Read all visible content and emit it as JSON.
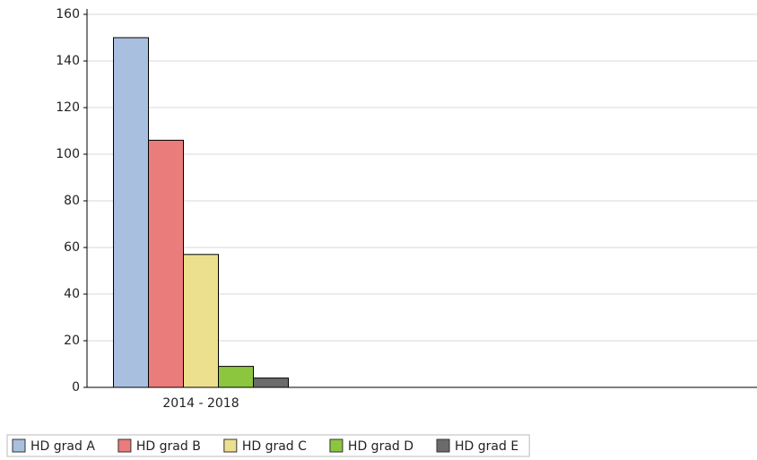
{
  "chart_data": {
    "type": "bar",
    "categories": [
      "2014 - 2018"
    ],
    "series": [
      {
        "name": "HD grad A",
        "color": "#a9bfe0",
        "values": [
          150
        ]
      },
      {
        "name": "HD grad B",
        "color": "#ea7c7b",
        "values": [
          106
        ]
      },
      {
        "name": "HD grad C",
        "color": "#ece08e",
        "values": [
          57
        ]
      },
      {
        "name": "HD grad D",
        "color": "#8cc63f",
        "values": [
          9
        ]
      },
      {
        "name": "HD grad E",
        "color": "#6b6b6b",
        "values": [
          4
        ]
      }
    ],
    "ylim": [
      0,
      160
    ],
    "yticks": [
      0,
      20,
      40,
      60,
      80,
      100,
      120,
      140,
      160
    ],
    "grid": true,
    "legend": "bottom"
  }
}
